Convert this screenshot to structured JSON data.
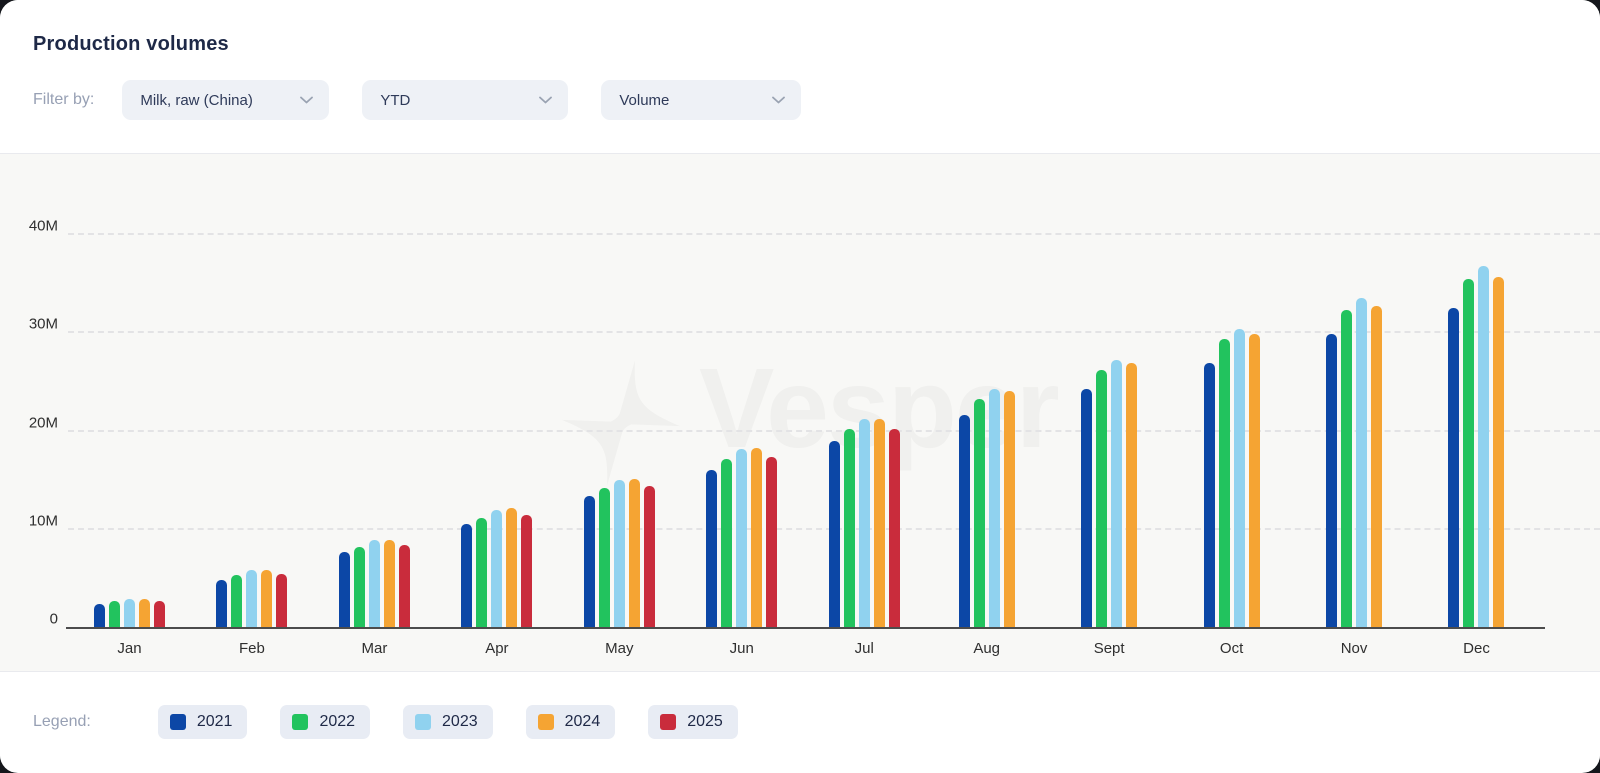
{
  "header": {
    "title": "Production volumes",
    "filter_label": "Filter by:",
    "filters": [
      {
        "name": "product",
        "value": "Milk, raw (China)"
      },
      {
        "name": "period",
        "value": "YTD"
      },
      {
        "name": "metric",
        "value": "Volume"
      }
    ]
  },
  "watermark": {
    "text": "Vesper"
  },
  "legend": {
    "label": "Legend:",
    "items": [
      {
        "year": "2021",
        "color": "#0c47a6"
      },
      {
        "year": "2022",
        "color": "#22c35e"
      },
      {
        "year": "2023",
        "color": "#90d2ef"
      },
      {
        "year": "2024",
        "color": "#f5a433"
      },
      {
        "year": "2025",
        "color": "#c92c3c"
      }
    ]
  },
  "chart_data": {
    "type": "bar",
    "title": "Production volumes",
    "unit": "millions",
    "categories": [
      "Jan",
      "Feb",
      "Mar",
      "Apr",
      "May",
      "Jun",
      "Jul",
      "Aug",
      "Sept",
      "Oct",
      "Nov",
      "Dec"
    ],
    "series": [
      {
        "name": "2021",
        "color": "#0c47a6",
        "values": [
          2.4,
          4.9,
          7.7,
          10.6,
          13.4,
          16.1,
          19.0,
          21.7,
          24.3,
          27.0,
          29.9,
          32.6
        ]
      },
      {
        "name": "2022",
        "color": "#22c35e",
        "values": [
          2.7,
          5.4,
          8.2,
          11.2,
          14.3,
          17.2,
          20.3,
          23.3,
          26.3,
          29.4,
          32.4,
          35.5
        ]
      },
      {
        "name": "2023",
        "color": "#90d2ef",
        "values": [
          3.0,
          5.9,
          9.0,
          12.0,
          15.1,
          18.2,
          21.3,
          24.3,
          27.3,
          30.4,
          33.6,
          36.8
        ]
      },
      {
        "name": "2024",
        "color": "#f5a433",
        "values": [
          3.0,
          5.9,
          9.0,
          12.2,
          15.2,
          18.3,
          21.3,
          24.1,
          27.0,
          29.9,
          32.8,
          35.7
        ]
      },
      {
        "name": "2025",
        "color": "#c92c3c",
        "values": [
          2.8,
          5.5,
          8.5,
          11.5,
          14.5,
          17.4,
          20.3,
          null,
          null,
          null,
          null,
          null
        ]
      }
    ],
    "ylabel": "",
    "ylim": [
      0,
      40
    ],
    "yticks": [
      {
        "label": "0",
        "value": 0
      },
      {
        "label": "10M",
        "value": 10
      },
      {
        "label": "20M",
        "value": 20
      },
      {
        "label": "30M",
        "value": 30
      },
      {
        "label": "40M",
        "value": 40
      }
    ],
    "grid": "horizontal-dashed",
    "legend_position": "bottom"
  }
}
